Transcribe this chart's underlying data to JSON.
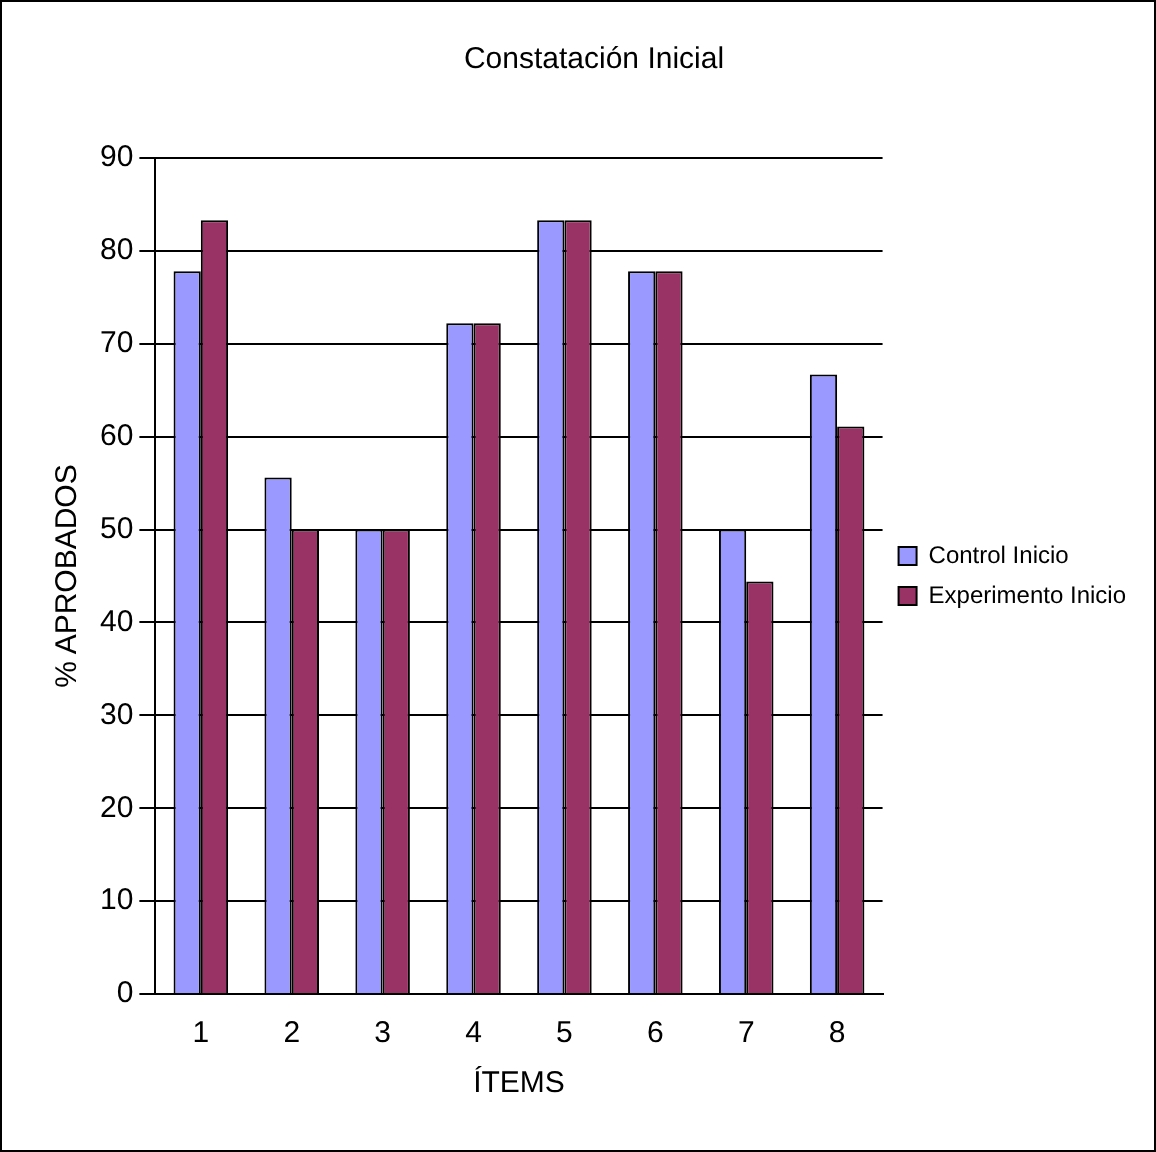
{
  "chart_data": {
    "type": "bar",
    "title": "Constatación Inicial",
    "xlabel": "ÍTEMS",
    "ylabel": "% APROBADOS",
    "categories": [
      "1",
      "2",
      "3",
      "4",
      "5",
      "6",
      "7",
      "8"
    ],
    "series": [
      {
        "name": "Control Inicio",
        "color": "#9999ff",
        "values": [
          77.8,
          55.6,
          50,
          72.2,
          83.3,
          77.8,
          50,
          66.7
        ]
      },
      {
        "name": "Experimento Inicio",
        "color": "#993366",
        "values": [
          83.3,
          50,
          50,
          72.2,
          83.3,
          77.8,
          44.4,
          61.1
        ]
      }
    ],
    "ylim": [
      0,
      90
    ],
    "yticks": [
      0,
      10,
      20,
      30,
      40,
      50,
      60,
      70,
      80,
      90
    ],
    "grid": "y",
    "legend": "right"
  }
}
